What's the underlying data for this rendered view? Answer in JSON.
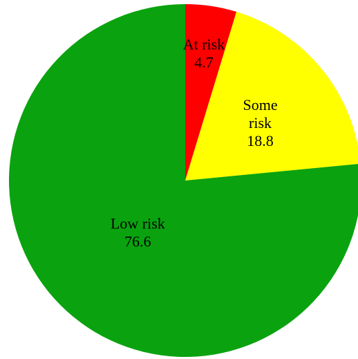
{
  "chart_data": {
    "type": "pie",
    "title": "",
    "slices": [
      {
        "label_lines": [
          "At risk"
        ],
        "value_text": "4.7",
        "value": 4.7,
        "color": "#ff0000"
      },
      {
        "label_lines": [
          "Some",
          "risk"
        ],
        "value_text": "18.8",
        "value": 18.8,
        "color": "#ffff00"
      },
      {
        "label_lines": [
          "Low risk"
        ],
        "value_text": "76.6",
        "value": 76.6,
        "color": "#0aa30f"
      }
    ],
    "start_angle": "12 o'clock",
    "direction": "clockwise",
    "legend": "none"
  }
}
